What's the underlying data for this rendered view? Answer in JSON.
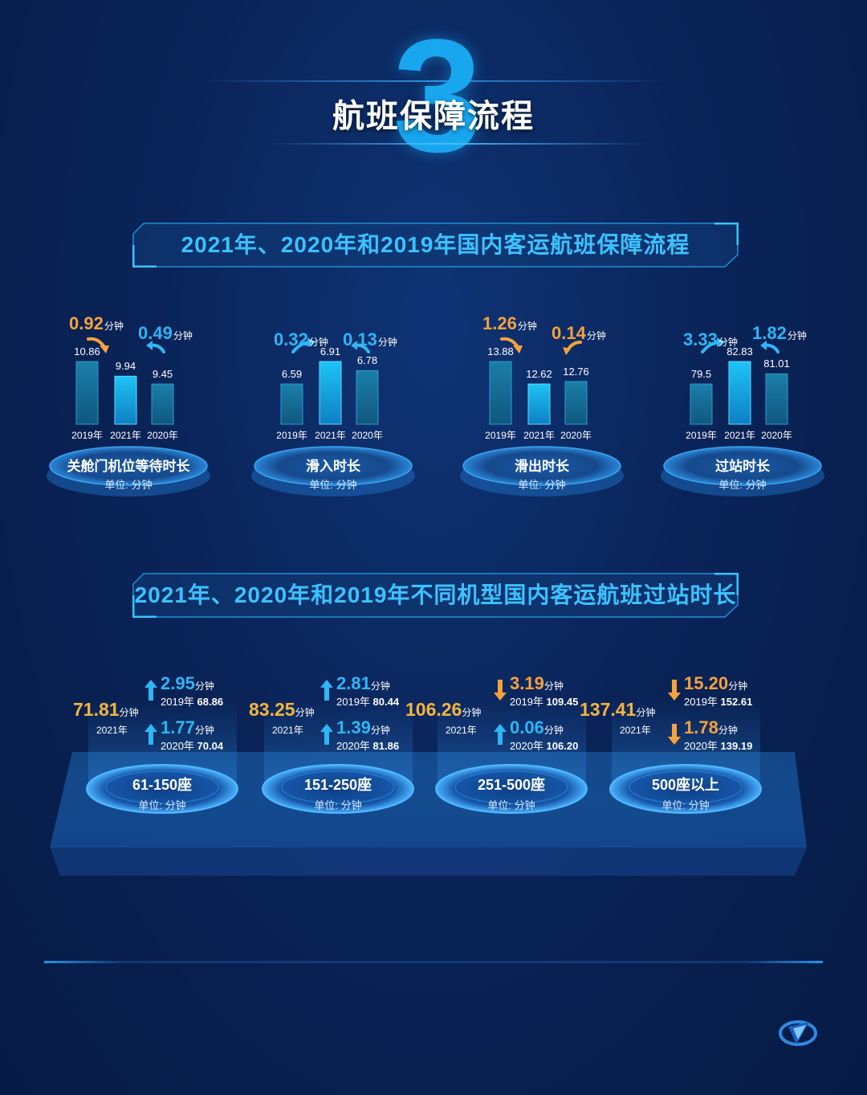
{
  "header": {
    "number": "3",
    "title": "航班保障流程"
  },
  "section1": {
    "title": "2021年、2020年和2019年国内客运航班保障流程"
  },
  "section2": {
    "title": "2021年、2020年和2019年不同机型国内客运航班过站时长"
  },
  "colors": {
    "accent": "#2fb6f5",
    "orange": "#f5a23c",
    "bar_highlight": "#17b8ef",
    "bar_normal": "#1a7fb0"
  },
  "chart_data": [
    {
      "type": "bar",
      "title": "关舱门机位等待时长",
      "unit_label": "单位: 分钟",
      "categories": [
        "2019年",
        "2021年",
        "2020年"
      ],
      "values": [
        10.86,
        9.94,
        9.45
      ],
      "changes": [
        {
          "value": "0.92",
          "unit": "分钟",
          "color": "orange",
          "arrow": "down"
        },
        {
          "value": "0.49",
          "unit": "分钟",
          "color": "blue",
          "arrow": "up"
        }
      ]
    },
    {
      "type": "bar",
      "title": "滑入时长",
      "unit_label": "单位: 分钟",
      "categories": [
        "2019年",
        "2021年",
        "2020年"
      ],
      "values": [
        6.59,
        6.91,
        6.78
      ],
      "changes": [
        {
          "value": "0.32",
          "unit": "分钟",
          "color": "blue",
          "arrow": "up"
        },
        {
          "value": "0.13",
          "unit": "分钟",
          "color": "blue",
          "arrow": "up"
        }
      ]
    },
    {
      "type": "bar",
      "title": "滑出时长",
      "unit_label": "单位: 分钟",
      "categories": [
        "2019年",
        "2021年",
        "2020年"
      ],
      "values": [
        13.88,
        12.62,
        12.76
      ],
      "changes": [
        {
          "value": "1.26",
          "unit": "分钟",
          "color": "orange",
          "arrow": "down"
        },
        {
          "value": "0.14",
          "unit": "分钟",
          "color": "orange",
          "arrow": "down"
        }
      ]
    },
    {
      "type": "bar",
      "title": "过站时长",
      "unit_label": "单位: 分钟",
      "categories": [
        "2019年",
        "2021年",
        "2020年"
      ],
      "values": [
        79.5,
        82.83,
        81.01
      ],
      "changes": [
        {
          "value": "3.33",
          "unit": "分钟",
          "color": "blue",
          "arrow": "up"
        },
        {
          "value": "1.82",
          "unit": "分钟",
          "color": "blue",
          "arrow": "up"
        }
      ]
    }
  ],
  "seats": [
    {
      "name": "61-150座",
      "unit_label": "单位: 分钟",
      "value_2021": "71.81",
      "unit": "分钟",
      "year_label": "2021年",
      "chg_vs_2019": "2.95",
      "dir_2019": "up",
      "label_2019": "2019年",
      "value_2019": "68.86",
      "chg_vs_2020": "1.77",
      "dir_2020": "up",
      "label_2020": "2020年",
      "value_2020": "70.04"
    },
    {
      "name": "151-250座",
      "unit_label": "单位: 分钟",
      "value_2021": "83.25",
      "unit": "分钟",
      "year_label": "2021年",
      "chg_vs_2019": "2.81",
      "dir_2019": "up",
      "label_2019": "2019年",
      "value_2019": "80.44",
      "chg_vs_2020": "1.39",
      "dir_2020": "up",
      "label_2020": "2020年",
      "value_2020": "81.86"
    },
    {
      "name": "251-500座",
      "unit_label": "单位: 分钟",
      "value_2021": "106.26",
      "unit": "分钟",
      "year_label": "2021年",
      "chg_vs_2019": "3.19",
      "dir_2019": "down",
      "label_2019": "2019年",
      "value_2019": "109.45",
      "chg_vs_2020": "0.06",
      "dir_2020": "up",
      "label_2020": "2020年",
      "value_2020": "106.20"
    },
    {
      "name": "500座以上",
      "unit_label": "单位: 分钟",
      "value_2021": "137.41",
      "unit": "分钟",
      "year_label": "2021年",
      "chg_vs_2019": "15.20",
      "dir_2019": "down",
      "label_2019": "2019年",
      "value_2019": "152.61",
      "chg_vs_2020": "1.78",
      "dir_2020": "down",
      "label_2020": "2020年",
      "value_2020": "139.19"
    }
  ]
}
